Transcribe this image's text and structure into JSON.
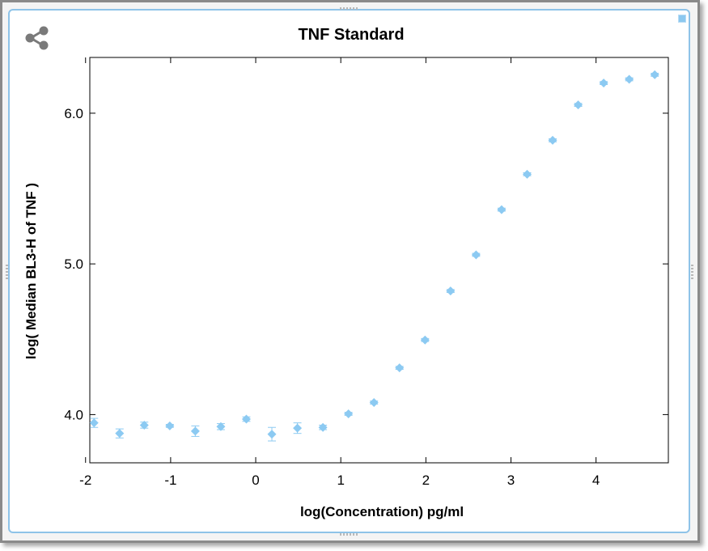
{
  "chart_data": {
    "type": "scatter",
    "title": "TNF Standard",
    "xlabel": "log(Concentration) pg/ml",
    "ylabel": "log( Median BL3-H of TNF )",
    "xlim": [
      -1.95,
      4.85
    ],
    "ylim": [
      3.68,
      6.37
    ],
    "xticks": [
      -2,
      -1,
      0,
      1,
      2,
      3,
      4
    ],
    "xtick_labels": [
      "-2",
      "-1",
      "0",
      "1",
      "2",
      "3",
      "4"
    ],
    "yticks": [
      4.0,
      5.0,
      6.0
    ],
    "ytick_labels": [
      "4.0",
      "5.0",
      "6.0"
    ],
    "grid": false,
    "marker_color": "#8ccaf2",
    "series": [
      {
        "points": [
          {
            "x": -1.9,
            "y": 3.945,
            "err": 0.03
          },
          {
            "x": -1.6,
            "y": 3.875,
            "err": 0.03
          },
          {
            "x": -1.31,
            "y": 3.93,
            "err": 0.02
          },
          {
            "x": -1.01,
            "y": 3.925,
            "err": 0.01
          },
          {
            "x": -0.71,
            "y": 3.89,
            "err": 0.035
          },
          {
            "x": -0.41,
            "y": 3.92,
            "err": 0.02
          },
          {
            "x": -0.11,
            "y": 3.97,
            "err": 0.015
          },
          {
            "x": 0.19,
            "y": 3.87,
            "err": 0.045
          },
          {
            "x": 0.49,
            "y": 3.91,
            "err": 0.035
          },
          {
            "x": 0.79,
            "y": 3.915,
            "err": 0.015
          },
          {
            "x": 1.09,
            "y": 4.005,
            "err": 0.01
          },
          {
            "x": 1.39,
            "y": 4.08,
            "err": 0.01
          },
          {
            "x": 1.69,
            "y": 4.31,
            "err": 0.01
          },
          {
            "x": 1.99,
            "y": 4.495,
            "err": 0.01
          },
          {
            "x": 2.29,
            "y": 4.82,
            "err": 0.01
          },
          {
            "x": 2.59,
            "y": 5.06,
            "err": 0.01
          },
          {
            "x": 2.89,
            "y": 5.36,
            "err": 0.01
          },
          {
            "x": 3.19,
            "y": 5.595,
            "err": 0.01
          },
          {
            "x": 3.49,
            "y": 5.82,
            "err": 0.01
          },
          {
            "x": 3.79,
            "y": 6.055,
            "err": 0.01
          },
          {
            "x": 4.09,
            "y": 6.2,
            "err": 0.01
          },
          {
            "x": 4.39,
            "y": 6.225,
            "err": 0.01
          },
          {
            "x": 4.69,
            "y": 6.255,
            "err": 0.01
          }
        ]
      }
    ]
  },
  "icons": {
    "share": "share-icon",
    "corner": "square-icon"
  }
}
